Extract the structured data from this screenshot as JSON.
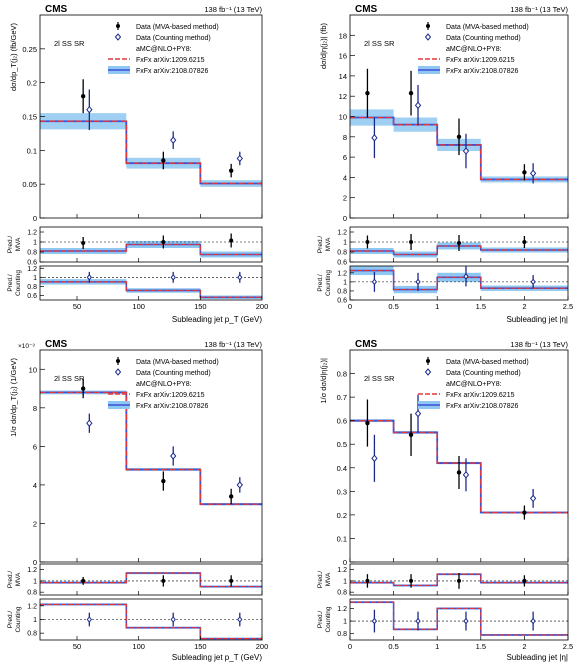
{
  "colors": {
    "band": "#8ec8f2",
    "powheg_line": "#3a4fd8",
    "fxfx_dashed": "#e0383c",
    "data_mva": "#000000",
    "data_count": "#1b2a8a",
    "frame": "#000000"
  },
  "common": {
    "cms_label": "CMS",
    "lumi_label": "138 fb⁻¹ (13 TeV)",
    "region_label": "2l SS SR",
    "legend": {
      "data_mva": "Data (MVA-based method)",
      "data_count": "Data (Counting method)",
      "mc_header": "aMC@NLO+PY8:",
      "fxfx1": "FxFx arXiv:1209.6215",
      "fxfx2": "FxFx arXiv:2108.07826"
    },
    "ratio1_ylabel": "Pred./ MVA",
    "ratio2_ylabel": "Pred./ Counting"
  },
  "chart_data": [
    {
      "type": "line",
      "id": "tl",
      "xlabel": "Subleading jet p_T (GeV)",
      "ylabel": "dσ/dp_T(j₂) (fb/GeV)",
      "xlim": [
        20,
        200
      ],
      "ylim": [
        0,
        0.3
      ],
      "xticks": [
        50,
        100,
        150,
        200
      ],
      "yticks": [
        0,
        0.05,
        0.1,
        0.15,
        0.2,
        0.25
      ],
      "ytick_labels": [
        "0",
        "0.05",
        "0.1",
        "0.15",
        "0.2",
        "0.25"
      ],
      "bins": [
        20,
        90,
        150,
        200
      ],
      "prediction": [
        0.143,
        0.081,
        0.051
      ],
      "band_halfwidth": [
        0.012,
        0.008,
        0.005
      ],
      "data_mva": {
        "x": [
          55,
          120,
          175
        ],
        "y": [
          0.18,
          0.085,
          0.07
        ],
        "err": [
          0.025,
          0.013,
          0.01
        ]
      },
      "data_count": {
        "x": [
          60,
          128,
          182
        ],
        "y": [
          0.16,
          0.115,
          0.088
        ],
        "err": [
          0.03,
          0.013,
          0.01
        ]
      },
      "ratio1": {
        "ylim": [
          0.6,
          1.3
        ],
        "yticks": [
          0.6,
          0.8,
          1,
          1.2
        ],
        "mc": [
          0.82,
          0.95,
          0.75
        ],
        "band": [
          0.06,
          0.07,
          0.06
        ],
        "pts": [
          0.98,
          1.0,
          1.03
        ],
        "err": [
          0.12,
          0.13,
          0.14
        ]
      },
      "ratio2": {
        "ylim": [
          0.5,
          1.25
        ],
        "yticks": [
          0.6,
          0.8,
          1,
          1.2
        ],
        "mc": [
          0.9,
          0.71,
          0.56
        ],
        "band": [
          0.06,
          0.05,
          0.04
        ],
        "pts": [
          1.0,
          1.0,
          1.0
        ],
        "err": [
          0.12,
          0.12,
          0.12
        ]
      }
    },
    {
      "type": "line",
      "id": "tr",
      "xlabel": "Subleading jet |η|",
      "ylabel": "dσ/d|η(j₂)| (fb)",
      "xlim": [
        0,
        2.5
      ],
      "ylim": [
        0,
        20
      ],
      "xticks": [
        0,
        0.5,
        1,
        1.5,
        2,
        2.5
      ],
      "yticks": [
        0,
        2,
        4,
        6,
        8,
        10,
        12,
        14,
        16,
        18
      ],
      "ytick_labels": [
        "0",
        "2",
        "4",
        "6",
        "8",
        "10",
        "12",
        "14",
        "16",
        "18"
      ],
      "bins": [
        0,
        0.5,
        1,
        1.5,
        2.5
      ],
      "prediction": [
        9.9,
        9.2,
        7.2,
        3.8
      ],
      "band_halfwidth": [
        0.8,
        0.7,
        0.6,
        0.3
      ],
      "data_mva": {
        "x": [
          0.2,
          0.7,
          1.25,
          2.0
        ],
        "y": [
          12.3,
          12.3,
          8.0,
          4.5
        ],
        "err": [
          2.4,
          2.2,
          1.8,
          0.8
        ]
      },
      "data_count": {
        "x": [
          0.28,
          0.78,
          1.33,
          2.1
        ],
        "y": [
          7.9,
          11.1,
          6.6,
          4.4
        ],
        "err": [
          2.0,
          2.0,
          1.7,
          1.0
        ]
      },
      "ratio1": {
        "ylim": [
          0.6,
          1.3
        ],
        "yticks": [
          0.6,
          0.8,
          1,
          1.2
        ],
        "mc": [
          0.82,
          0.75,
          0.92,
          0.84
        ],
        "band": [
          0.06,
          0.06,
          0.07,
          0.05
        ],
        "pts": [
          1.0,
          1.0,
          0.98,
          1.0
        ],
        "err": [
          0.13,
          0.16,
          0.16,
          0.12
        ]
      },
      "ratio2": {
        "ylim": [
          0.6,
          1.35
        ],
        "yticks": [
          0.6,
          0.8,
          1,
          1.2
        ],
        "mc": [
          1.25,
          0.83,
          1.1,
          0.86
        ],
        "band": [
          0.1,
          0.08,
          0.1,
          0.06
        ],
        "pts": [
          1.0,
          1.0,
          1.12,
          1.0
        ],
        "err": [
          0.22,
          0.2,
          0.22,
          0.15
        ]
      }
    },
    {
      "type": "line",
      "id": "bl",
      "xlabel": "Subleading jet p_T (GeV)",
      "ylabel": "1/σ dσ/dp_T(j₂) (1/GeV)",
      "scale_label": "×10⁻³",
      "xlim": [
        20,
        200
      ],
      "ylim": [
        0,
        11
      ],
      "xticks": [
        50,
        100,
        150,
        200
      ],
      "yticks": [
        0,
        2,
        4,
        6,
        8,
        10
      ],
      "ytick_labels": [
        "0",
        "2",
        "4",
        "6",
        "8",
        "10"
      ],
      "bins": [
        20,
        90,
        150,
        200
      ],
      "prediction": [
        8.8,
        4.8,
        3.0
      ],
      "band_halfwidth": [
        0.1,
        0.08,
        0.06
      ],
      "data_mva": {
        "x": [
          55,
          120,
          175
        ],
        "y": [
          9.0,
          4.2,
          3.4
        ],
        "err": [
          0.5,
          0.5,
          0.4
        ]
      },
      "data_count": {
        "x": [
          60,
          128,
          182
        ],
        "y": [
          7.2,
          5.5,
          4.0
        ],
        "err": [
          0.5,
          0.5,
          0.4
        ]
      },
      "ratio1": {
        "ylim": [
          0.75,
          1.3
        ],
        "yticks": [
          0.8,
          1,
          1.2
        ],
        "mc": [
          0.97,
          1.14,
          0.9
        ],
        "band": [
          0.015,
          0.015,
          0.015
        ],
        "pts": [
          1.0,
          1.0,
          1.0
        ],
        "err": [
          0.07,
          0.1,
          0.1
        ]
      },
      "ratio2": {
        "ylim": [
          0.7,
          1.3
        ],
        "yticks": [
          0.8,
          1,
          1.2
        ],
        "mc": [
          1.22,
          0.88,
          0.72
        ],
        "band": [
          0.015,
          0.015,
          0.015
        ],
        "pts": [
          1.0,
          1.0,
          1.0
        ],
        "err": [
          0.1,
          0.1,
          0.1
        ]
      }
    },
    {
      "type": "line",
      "id": "br",
      "xlabel": "Subleading jet |η|",
      "ylabel": "1/σ dσ/d|η(j₂)|",
      "xlim": [
        0,
        2.5
      ],
      "ylim": [
        0,
        0.9
      ],
      "xticks": [
        0,
        0.5,
        1,
        1.5,
        2,
        2.5
      ],
      "yticks": [
        0,
        0.1,
        0.2,
        0.3,
        0.4,
        0.5,
        0.6,
        0.7,
        0.8
      ],
      "ytick_labels": [
        "0",
        "0.1",
        "0.2",
        "0.3",
        "0.4",
        "0.5",
        "0.6",
        "0.7",
        "0.8"
      ],
      "bins": [
        0,
        0.5,
        1,
        1.5,
        2.5
      ],
      "prediction": [
        0.6,
        0.55,
        0.42,
        0.21
      ],
      "band_halfwidth": [
        0.006,
        0.006,
        0.005,
        0.004
      ],
      "data_mva": {
        "x": [
          0.2,
          0.7,
          1.25,
          2.0
        ],
        "y": [
          0.59,
          0.54,
          0.38,
          0.21
        ],
        "err": [
          0.1,
          0.09,
          0.07,
          0.03
        ]
      },
      "data_count": {
        "x": [
          0.28,
          0.78,
          1.33,
          2.1
        ],
        "y": [
          0.44,
          0.63,
          0.37,
          0.27
        ],
        "err": [
          0.1,
          0.08,
          0.07,
          0.04
        ]
      },
      "ratio1": {
        "ylim": [
          0.75,
          1.3
        ],
        "yticks": [
          0.8,
          1,
          1.2
        ],
        "mc": [
          0.97,
          0.92,
          1.12,
          0.97
        ],
        "band": [
          0.015,
          0.015,
          0.015,
          0.015
        ],
        "pts": [
          1.0,
          1.0,
          1.0,
          1.0
        ],
        "err": [
          0.12,
          0.12,
          0.14,
          0.1
        ]
      },
      "ratio2": {
        "ylim": [
          0.7,
          1.35
        ],
        "yticks": [
          0.8,
          1,
          1.2
        ],
        "mc": [
          1.3,
          0.87,
          1.2,
          0.78
        ],
        "band": [
          0.015,
          0.015,
          0.015,
          0.015
        ],
        "pts": [
          1.0,
          1.0,
          1.0,
          1.0
        ],
        "err": [
          0.18,
          0.15,
          0.15,
          0.15
        ]
      }
    }
  ]
}
